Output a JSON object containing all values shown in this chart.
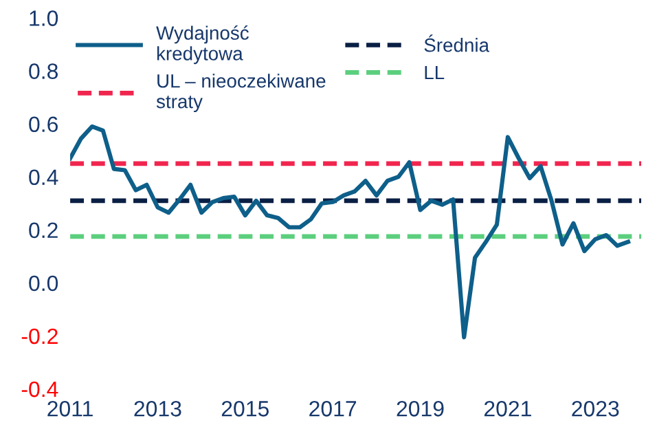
{
  "chart_data": {
    "type": "line",
    "x": [
      2011.0,
      2011.25,
      2011.5,
      2011.75,
      2012.0,
      2012.25,
      2012.5,
      2012.75,
      2013.0,
      2013.25,
      2013.5,
      2013.75,
      2014.0,
      2014.25,
      2014.5,
      2014.75,
      2015.0,
      2015.25,
      2015.5,
      2015.75,
      2016.0,
      2016.25,
      2016.5,
      2016.75,
      2017.0,
      2017.25,
      2017.5,
      2017.75,
      2018.0,
      2018.25,
      2018.5,
      2018.75,
      2019.0,
      2019.25,
      2019.5,
      2019.75,
      2020.0,
      2020.25,
      2020.5,
      2020.75,
      2021.0,
      2021.25,
      2021.5,
      2021.75,
      2022.0,
      2022.25,
      2022.5,
      2022.75,
      2023.0,
      2023.25,
      2023.5,
      2023.75
    ],
    "series": [
      {
        "name": "Wydajność\nkredytowa",
        "color": "#0e5f8a",
        "values": [
          0.47,
          0.545,
          0.59,
          0.575,
          0.43,
          0.425,
          0.35,
          0.37,
          0.285,
          0.265,
          0.315,
          0.37,
          0.265,
          0.305,
          0.32,
          0.325,
          0.255,
          0.31,
          0.255,
          0.245,
          0.21,
          0.21,
          0.24,
          0.3,
          0.305,
          0.33,
          0.345,
          0.385,
          0.33,
          0.385,
          0.4,
          0.455,
          0.275,
          0.31,
          0.295,
          0.315,
          -0.205,
          0.095,
          0.155,
          0.22,
          0.55,
          0.47,
          0.395,
          0.44,
          0.31,
          0.145,
          0.225,
          0.12,
          0.165,
          0.18,
          0.14,
          0.155
        ]
      }
    ],
    "ref_lines": [
      {
        "axis": "y",
        "value": 0.31,
        "label": "Średnia",
        "color": "#0a1f44",
        "line_style": "dashed"
      },
      {
        "axis": "y",
        "value": 0.45,
        "label": "UL – nieoczekiwane\nstraty",
        "color": "#f0264f",
        "line_style": "dashed"
      },
      {
        "axis": "y",
        "value": 0.175,
        "label": "LL",
        "color": "#5ccf7e",
        "line_style": "dashed"
      }
    ],
    "xlim": [
      2011,
      2024.05
    ],
    "xticks": [
      2011,
      2013,
      2015,
      2017,
      2019,
      2021,
      2023
    ],
    "ylim": [
      -0.4,
      1.0
    ],
    "yticks": [
      {
        "value": -0.4,
        "label": "-0.4"
      },
      {
        "value": -0.2,
        "label": "-0.2"
      },
      {
        "value": 0.0,
        "label": "0.0"
      },
      {
        "value": 0.2,
        "label": "0.2"
      },
      {
        "value": 0.4,
        "label": "0.4"
      },
      {
        "value": 0.6,
        "label": "0.6"
      },
      {
        "value": 0.8,
        "label": "0.8"
      },
      {
        "value": 1.0,
        "label": "1.0"
      }
    ],
    "legend": "top left",
    "grid": false,
    "marker": "none",
    "line_style": "solid"
  }
}
